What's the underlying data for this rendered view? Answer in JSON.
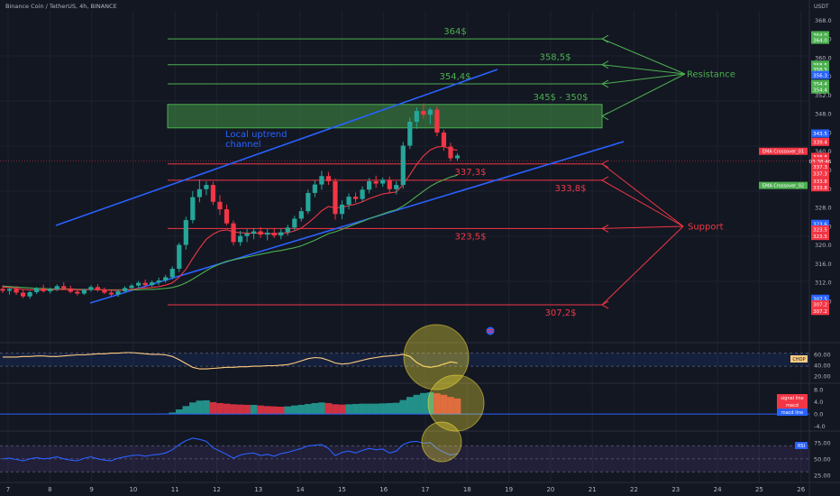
{
  "header": {
    "symbol": "Binance Coin / TetherUS, 4h, BINANCE"
  },
  "price_axis": {
    "unit": "USDT",
    "ticks": [
      368,
      364,
      360,
      356,
      352,
      348,
      344,
      340,
      336,
      332,
      328,
      324,
      320,
      316,
      312,
      308
    ],
    "tick_labels": [
      "368.0",
      "364.0",
      "360.0",
      "356.0",
      "352.0",
      "348.0",
      "344.0",
      "340.0",
      "336.0",
      "332.0",
      "328.0",
      "324.0",
      "320.0",
      "316.0",
      "312.0",
      "308.0"
    ],
    "tags": [
      {
        "price": 364.8,
        "text": "364.0",
        "color": "#4caf50"
      },
      {
        "price": 363.8,
        "text": "364.0",
        "color": "#4caf50"
      },
      {
        "price": 358.5,
        "text": "358.5",
        "color": "#4caf50"
      },
      {
        "price": 357.5,
        "text": "358.5",
        "color": "#4caf50"
      },
      {
        "price": 356.3,
        "text": "356.3",
        "color": "#2962ff"
      },
      {
        "price": 354.4,
        "text": "354.4",
        "color": "#4caf50"
      },
      {
        "price": 353.2,
        "text": "354.4",
        "color": "#4caf50"
      },
      {
        "price": 343.8,
        "text": "343.5",
        "color": "#2962ff"
      },
      {
        "price": 342.0,
        "text": "339.4",
        "color": "#f23645"
      },
      {
        "price": 338.8,
        "text": "338.8",
        "color": "#f23645"
      },
      {
        "price": 337.9,
        "text": "03:38:46",
        "color": "#f23645"
      },
      {
        "price": 336.7,
        "text": "337.3",
        "color": "#f23645"
      },
      {
        "price": 335.3,
        "text": "337.3",
        "color": "#f23645"
      },
      {
        "price": 333.6,
        "text": "333.8",
        "color": "#f23645"
      },
      {
        "price": 332.3,
        "text": "333.8",
        "color": "#f23645"
      },
      {
        "price": 324.5,
        "text": "323.6",
        "color": "#2962ff"
      },
      {
        "price": 323.3,
        "text": "323.5",
        "color": "#f23645"
      },
      {
        "price": 321.9,
        "text": "323.5",
        "color": "#f23645"
      },
      {
        "price": 308.5,
        "text": "307.5",
        "color": "#2962ff"
      },
      {
        "price": 307.3,
        "text": "307.2",
        "color": "#f23645"
      },
      {
        "price": 305.9,
        "text": "307.2",
        "color": "#f23645"
      }
    ],
    "ema_tags": [
      {
        "price": 340.0,
        "text": "EMA Crossover_01",
        "color": "#f23645"
      },
      {
        "price": 332.7,
        "text": "EMA Crossover_02",
        "color": "#4caf50"
      }
    ]
  },
  "time_axis": {
    "labels": [
      "7",
      "8",
      "9",
      "10",
      "11",
      "12",
      "13",
      "14",
      "15",
      "16",
      "17",
      "18",
      "19",
      "20",
      "21",
      "22",
      "23",
      "24",
      "25",
      "26"
    ]
  },
  "chart_data": {
    "type": "candlestick",
    "x_unit": "4h bars",
    "ylim": [
      302,
      370
    ],
    "candles": [
      [
        310.6,
        311.4,
        309.7,
        310.2
      ],
      [
        310.2,
        311.0,
        309.4,
        310.6
      ],
      [
        310.6,
        311.2,
        309.3,
        309.8
      ],
      [
        309.8,
        310.4,
        308.6,
        309.0
      ],
      [
        309.0,
        310.2,
        308.5,
        309.9
      ],
      [
        309.9,
        311.0,
        309.5,
        310.7
      ],
      [
        310.7,
        311.5,
        309.8,
        310.1
      ],
      [
        310.1,
        310.9,
        309.6,
        310.5
      ],
      [
        310.5,
        311.6,
        310.1,
        311.2
      ],
      [
        311.2,
        312.0,
        310.3,
        310.7
      ],
      [
        310.7,
        311.3,
        309.7,
        310.0
      ],
      [
        310.0,
        310.6,
        309.2,
        309.6
      ],
      [
        309.6,
        310.6,
        309.3,
        310.4
      ],
      [
        310.4,
        311.4,
        310.0,
        311.0
      ],
      [
        311.0,
        311.6,
        310.0,
        310.3
      ],
      [
        310.3,
        310.9,
        309.5,
        309.8
      ],
      [
        309.8,
        310.4,
        309.0,
        309.4
      ],
      [
        309.4,
        310.4,
        308.9,
        310.1
      ],
      [
        310.1,
        311.2,
        309.8,
        310.8
      ],
      [
        310.8,
        311.7,
        310.3,
        311.3
      ],
      [
        311.3,
        312.3,
        310.7,
        311.9
      ],
      [
        311.9,
        312.6,
        311.0,
        311.4
      ],
      [
        311.4,
        312.4,
        311.0,
        312.0
      ],
      [
        312.0,
        313.0,
        311.4,
        312.4
      ],
      [
        312.4,
        313.6,
        311.9,
        313.1
      ],
      [
        313.1,
        315.4,
        312.7,
        314.9
      ],
      [
        314.9,
        320.5,
        314.2,
        320.0
      ],
      [
        320.0,
        326.0,
        319.0,
        325.3
      ],
      [
        325.3,
        331.5,
        324.6,
        330.2
      ],
      [
        330.2,
        334.0,
        329.1,
        331.9
      ],
      [
        331.9,
        333.6,
        330.6,
        332.8
      ],
      [
        332.8,
        333.5,
        328.5,
        329.2
      ],
      [
        329.2,
        330.6,
        326.4,
        327.6
      ],
      [
        327.6,
        328.6,
        324.2,
        324.6
      ],
      [
        324.6,
        325.2,
        319.9,
        320.6
      ],
      [
        320.6,
        323.0,
        319.8,
        321.9
      ],
      [
        321.9,
        323.4,
        320.6,
        322.4
      ],
      [
        322.4,
        323.6,
        321.2,
        322.9
      ],
      [
        322.9,
        323.8,
        321.5,
        322.2
      ],
      [
        322.2,
        323.4,
        321.0,
        322.6
      ],
      [
        322.6,
        323.6,
        321.5,
        322.0
      ],
      [
        322.0,
        323.4,
        321.2,
        322.7
      ],
      [
        322.7,
        324.3,
        322.0,
        323.7
      ],
      [
        323.7,
        326.2,
        323.0,
        325.6
      ],
      [
        325.6,
        328.0,
        325.0,
        327.2
      ],
      [
        327.2,
        331.8,
        326.6,
        331.1
      ],
      [
        331.1,
        333.8,
        330.2,
        332.9
      ],
      [
        332.9,
        335.8,
        331.8,
        334.7
      ],
      [
        334.7,
        335.6,
        332.8,
        333.6
      ],
      [
        333.6,
        334.2,
        325.4,
        326.6
      ],
      [
        326.6,
        329.5,
        325.5,
        328.6
      ],
      [
        328.6,
        331.0,
        327.6,
        330.3
      ],
      [
        330.3,
        331.2,
        329.0,
        329.8
      ],
      [
        329.8,
        332.5,
        329.2,
        331.8
      ],
      [
        331.8,
        334.3,
        331.0,
        333.6
      ],
      [
        333.6,
        334.8,
        332.2,
        333.1
      ],
      [
        333.1,
        334.4,
        332.4,
        333.9
      ],
      [
        333.9,
        334.6,
        331.2,
        331.9
      ],
      [
        331.9,
        333.6,
        330.8,
        332.8
      ],
      [
        332.8,
        342.0,
        332.0,
        341.2
      ],
      [
        341.2,
        347.2,
        340.5,
        346.3
      ],
      [
        346.3,
        349.4,
        344.8,
        348.6
      ],
      [
        348.6,
        350.2,
        347.0,
        347.8
      ],
      [
        347.8,
        349.3,
        345.8,
        348.9
      ],
      [
        348.9,
        349.6,
        343.2,
        344.0
      ],
      [
        344.0,
        344.6,
        340.1,
        341.0
      ],
      [
        341.0,
        341.8,
        337.9,
        338.5
      ],
      [
        338.5,
        339.6,
        338.0,
        339.1
      ]
    ],
    "ema_fast": [
      311.0,
      310.9,
      310.7,
      310.5,
      310.4,
      310.4,
      310.4,
      310.4,
      310.5,
      310.5,
      310.5,
      310.4,
      310.4,
      310.5,
      310.5,
      310.4,
      310.3,
      310.3,
      310.4,
      310.5,
      310.7,
      310.8,
      310.9,
      311.1,
      311.4,
      311.9,
      313.1,
      314.8,
      317.1,
      319.3,
      321.2,
      322.3,
      323.0,
      323.2,
      322.8,
      322.6,
      322.5,
      322.5,
      322.5,
      322.4,
      322.4,
      322.4,
      322.6,
      323.0,
      323.6,
      324.7,
      325.9,
      327.3,
      328.2,
      327.9,
      328.0,
      328.4,
      328.7,
      329.2,
      329.9,
      330.4,
      330.9,
      331.1,
      331.3,
      332.9,
      335.0,
      337.2,
      339.0,
      340.3,
      340.9,
      341.0,
      340.5,
      340.2
    ],
    "ema_slow": [
      311.2,
      311.1,
      311.0,
      310.9,
      310.8,
      310.7,
      310.7,
      310.6,
      310.6,
      310.6,
      310.6,
      310.5,
      310.5,
      310.5,
      310.5,
      310.4,
      310.4,
      310.4,
      310.4,
      310.4,
      310.4,
      310.5,
      310.5,
      310.6,
      310.7,
      310.9,
      311.3,
      311.9,
      312.7,
      313.6,
      314.5,
      315.3,
      315.9,
      316.5,
      316.8,
      317.1,
      317.4,
      317.7,
      318.0,
      318.3,
      318.6,
      318.8,
      319.1,
      319.4,
      319.8,
      320.4,
      321.0,
      321.7,
      322.4,
      322.8,
      323.3,
      323.9,
      324.5,
      325.0,
      325.6,
      326.1,
      326.6,
      327.1,
      327.5,
      328.3,
      329.3,
      330.4,
      331.5,
      332.5,
      333.3,
      333.9,
      334.5,
      334.9
    ],
    "levels": {
      "resistance": [
        {
          "price": 364,
          "label": "364$"
        },
        {
          "price": 358.5,
          "label": "358,5$"
        },
        {
          "price": 354.4,
          "label": "354,4$"
        }
      ],
      "resistance_zone": {
        "from": 345,
        "to": 350,
        "label": "345$ - 350$"
      },
      "support": [
        {
          "price": 337.3,
          "label": "337,3$"
        },
        {
          "price": 333.8,
          "label": "333,8$"
        },
        {
          "price": 323.5,
          "label": "323,5$"
        },
        {
          "price": 307.2,
          "label": "307,2$"
        }
      ],
      "resistance_title": "Resistance",
      "support_title": "Support"
    },
    "channel_label": "Local uptrend\nchannel",
    "indicators": {
      "chop": {
        "name": "CHOP",
        "ticks": [
          60,
          40,
          20
        ],
        "tick_labels": [
          "60.00",
          "40.00",
          "20.00"
        ],
        "band": [
          38,
          62
        ],
        "ylim": [
          10,
          78
        ],
        "values": [
          55,
          55,
          55,
          56,
          56,
          57,
          57,
          56,
          56,
          57,
          58,
          59,
          59,
          60,
          61,
          61,
          62,
          62,
          63,
          63,
          62,
          61,
          60,
          60,
          59,
          56,
          50,
          43,
          36,
          33,
          33,
          34,
          35,
          36,
          36,
          37,
          37,
          38,
          38,
          39,
          39,
          40,
          41,
          44,
          48,
          52,
          54,
          53,
          49,
          44,
          42,
          43,
          46,
          49,
          52,
          54,
          56,
          57,
          58,
          60,
          56,
          45,
          38,
          36,
          38,
          42,
          46,
          44
        ]
      },
      "macd": {
        "labels": [
          "signal line",
          "macd",
          "macd line"
        ],
        "ticks": [
          8,
          4,
          0,
          -4
        ],
        "tick_labels": [
          "8.0",
          "4.0",
          "0.0",
          "-4.0"
        ],
        "ylim": [
          -5,
          9.5
        ],
        "hist": [
          0.0,
          0.0,
          0.0,
          0.0,
          0.0,
          0.0,
          0.0,
          0.0,
          0.0,
          0.0,
          0.0,
          0.0,
          0.0,
          0.0,
          0.0,
          0.0,
          0.0,
          0.0,
          0.0,
          0.0,
          0.0,
          0.0,
          0.0,
          0.1,
          0.1,
          0.5,
          1.5,
          2.6,
          3.8,
          4.4,
          4.5,
          3.9,
          3.6,
          3.4,
          3.2,
          3.1,
          3.0,
          3.0,
          2.8,
          2.6,
          2.5,
          2.4,
          2.5,
          2.8,
          3.0,
          3.3,
          3.6,
          3.8,
          3.6,
          3.2,
          3.1,
          3.2,
          3.3,
          3.4,
          3.4,
          3.4,
          3.5,
          3.6,
          3.7,
          4.6,
          5.6,
          6.3,
          6.9,
          7.1,
          6.8,
          6.3,
          5.6,
          5.1
        ]
      },
      "rsi": {
        "name": "RSI",
        "ticks": [
          75,
          50,
          25
        ],
        "tick_labels": [
          "75.00",
          "50.00",
          "25.00"
        ],
        "band": [
          30,
          70
        ],
        "ylim": [
          15,
          90
        ],
        "values": [
          50,
          51,
          49,
          47,
          50,
          52,
          50,
          51,
          53,
          50,
          48,
          47,
          51,
          53,
          50,
          48,
          47,
          51,
          53,
          55,
          56,
          54,
          56,
          57,
          59,
          64,
          72,
          78,
          82,
          80,
          77,
          67,
          62,
          57,
          51,
          56,
          58,
          59,
          55,
          57,
          54,
          58,
          60,
          63,
          66,
          70,
          71,
          72,
          66,
          55,
          60,
          62,
          59,
          63,
          66,
          64,
          65,
          59,
          62,
          72,
          76,
          77,
          74,
          75,
          66,
          60,
          56,
          58
        ]
      }
    }
  }
}
